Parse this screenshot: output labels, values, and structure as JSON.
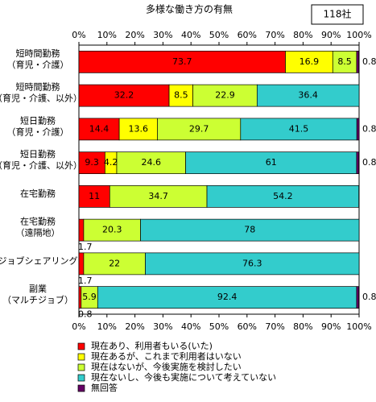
{
  "chart_data": {
    "type": "stacked-bar-horizontal",
    "title": "多様な働き方の有無",
    "sample_note": "118社",
    "categories": [
      [
        "短時間勤務",
        "（育児・介護）"
      ],
      [
        "短時間勤務",
        "（育児・介護、以外）"
      ],
      [
        "短日勤務",
        "（育児・介護）"
      ],
      [
        "短日勤務",
        "（育児・介護、以外）"
      ],
      [
        "在宅勤務"
      ],
      [
        "在宅勤務",
        "（遠隔地）"
      ],
      [
        "ジョブシェアリング"
      ],
      [
        "副業",
        "（マルチジョブ）"
      ]
    ],
    "series": [
      {
        "name": "現在あり、利用者もいる(いた)",
        "color": "#ff0000",
        "values": [
          73.7,
          32.2,
          14.4,
          9.3,
          11.0,
          1.7,
          1.7,
          0.8
        ]
      },
      {
        "name": "現在あるが、これまで利用者はいない",
        "color": "#ffff00",
        "values": [
          16.9,
          8.5,
          13.6,
          4.2,
          0,
          0,
          0,
          0
        ]
      },
      {
        "name": "現在はないが、今後実施を検討したい",
        "color": "#ccff33",
        "values": [
          8.5,
          22.9,
          29.7,
          24.6,
          34.7,
          20.3,
          22.0,
          5.9
        ]
      },
      {
        "name": "現在ないし、今後も実施について考えていない",
        "color": "#33cccc",
        "values": [
          0,
          36.4,
          41.5,
          61.0,
          54.2,
          78.0,
          76.3,
          92.4
        ]
      },
      {
        "name": "無回答",
        "color": "#660066",
        "values": [
          0.8,
          0,
          0.8,
          0.8,
          0,
          0,
          0,
          0.8
        ]
      }
    ],
    "xlim": [
      0,
      100
    ],
    "xticks": [
      {
        "value": 0,
        "label": "0%"
      },
      {
        "value": 10,
        "label": "10%"
      },
      {
        "value": 20,
        "label": "20%"
      },
      {
        "value": 30,
        "label": "30%"
      },
      {
        "value": 40,
        "label": "40%"
      },
      {
        "value": 50,
        "label": "50%"
      },
      {
        "value": 60,
        "label": "60%"
      },
      {
        "value": 70,
        "label": "70%"
      },
      {
        "value": 80,
        "label": "80%"
      },
      {
        "value": 90,
        "label": "90%"
      },
      {
        "value": 100,
        "label": "100%"
      }
    ]
  }
}
